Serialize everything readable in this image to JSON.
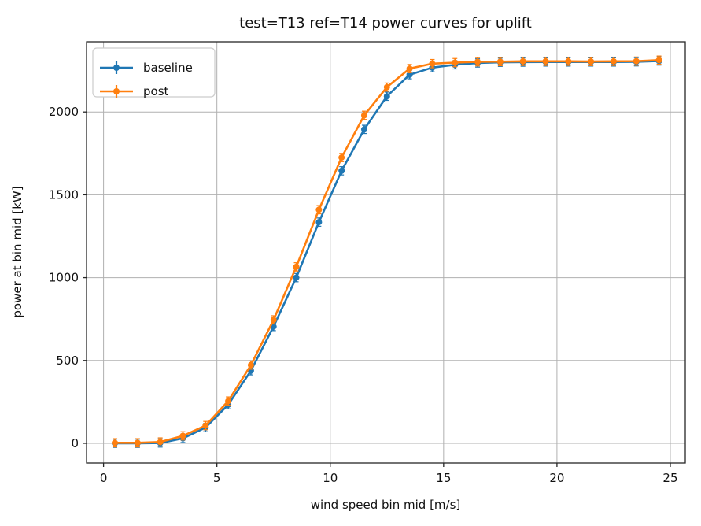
{
  "figure": {
    "background": "#ffffff",
    "title": "test=T13 ref=T14 power curves for uplift"
  },
  "chart_data": {
    "type": "line",
    "plot_style": "errorbar-with-circle-markers",
    "title": "test=T13 ref=T14 power curves for uplift",
    "xlabel": "wind speed bin mid [m/s]",
    "ylabel": "power at bin mid [kW]",
    "x": [
      0.5,
      1.5,
      2.5,
      3.5,
      4.5,
      5.5,
      6.5,
      7.5,
      8.5,
      9.5,
      10.5,
      11.5,
      12.5,
      13.5,
      14.5,
      15.5,
      16.5,
      17.5,
      18.5,
      19.5,
      20.5,
      21.5,
      22.5,
      23.5,
      24.5
    ],
    "series": [
      {
        "name": "baseline",
        "color": "#1f77b4",
        "yerr_kw": 25,
        "values": [
          0,
          0,
          2,
          30,
          95,
          233,
          438,
          705,
          1000,
          1335,
          1645,
          1895,
          2095,
          2225,
          2268,
          2285,
          2296,
          2300,
          2301,
          2302,
          2302,
          2302,
          2302,
          2303,
          2308
        ]
      },
      {
        "name": "post",
        "color": "#ff7f0e",
        "yerr_kw": 25,
        "values": [
          3,
          3,
          8,
          45,
          107,
          255,
          472,
          745,
          1065,
          1410,
          1725,
          1980,
          2150,
          2262,
          2292,
          2298,
          2303,
          2304,
          2306,
          2306,
          2306,
          2305,
          2306,
          2307,
          2313
        ]
      }
    ],
    "xticks": [
      0,
      5,
      10,
      15,
      20,
      25
    ],
    "yticks": [
      0,
      500,
      1000,
      1500,
      2000
    ],
    "xlim": [
      -0.75,
      25.66
    ],
    "ylim": [
      -119,
      2424
    ],
    "grid": true,
    "legend_position": "upper left"
  },
  "colors": {
    "grid": "#b0b0b0",
    "spine": "#262626",
    "tick": "#262626",
    "legend_border": "#cccccc",
    "legend_bg": "#ffffff"
  }
}
